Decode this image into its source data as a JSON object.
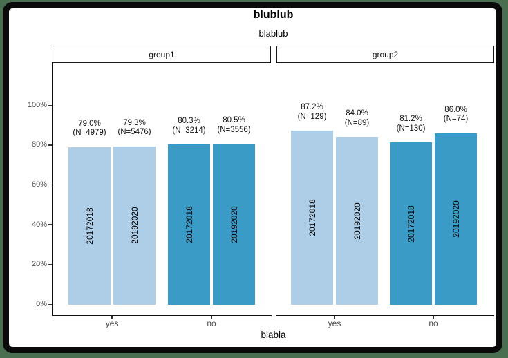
{
  "window": {
    "page_background": "#4a6e50",
    "frame_color": "#0a0a0a",
    "canvas_background": "#ffffff"
  },
  "chart_data": {
    "type": "bar",
    "title": "blublub",
    "subtitle": "blablub",
    "xlabel": "blabla",
    "ylabel": "",
    "legend_position": "none",
    "grid": "off",
    "ylim": [
      0,
      100
    ],
    "y_axis": {
      "ticks": [
        {
          "label": "0%",
          "value": 0
        },
        {
          "label": "20%",
          "value": 20
        },
        {
          "label": "40%",
          "value": 40
        },
        {
          "label": "60%",
          "value": 60
        },
        {
          "label": "80%",
          "value": 80
        },
        {
          "label": "100%",
          "value": 100
        }
      ]
    },
    "series_colors": {
      "light_blue": "#aecde6",
      "dark_blue": "#3a9cc6"
    },
    "facets": [
      {
        "label": "group1",
        "groups": [
          {
            "category": "yes",
            "color_key": "light_blue",
            "bars": [
              {
                "period": "20172018",
                "value_pct": 79.0,
                "label_pct": "79.0%",
                "label_n": "(N=4979)"
              },
              {
                "period": "20192020",
                "value_pct": 79.3,
                "label_pct": "79.3%",
                "label_n": "(N=5476)"
              }
            ]
          },
          {
            "category": "no",
            "color_key": "dark_blue",
            "bars": [
              {
                "period": "20172018",
                "value_pct": 80.3,
                "label_pct": "80.3%",
                "label_n": "(N=3214)"
              },
              {
                "period": "20192020",
                "value_pct": 80.5,
                "label_pct": "80.5%",
                "label_n": "(N=3556)"
              }
            ]
          }
        ]
      },
      {
        "label": "group2",
        "groups": [
          {
            "category": "yes",
            "color_key": "light_blue",
            "bars": [
              {
                "period": "20172018",
                "value_pct": 87.2,
                "label_pct": "87.2%",
                "label_n": "(N=129)"
              },
              {
                "period": "20192020",
                "value_pct": 84.0,
                "label_pct": "84.0%",
                "label_n": "(N=89)"
              }
            ]
          },
          {
            "category": "no",
            "color_key": "dark_blue",
            "bars": [
              {
                "period": "20172018",
                "value_pct": 81.2,
                "label_pct": "81.2%",
                "label_n": "(N=130)"
              },
              {
                "period": "20192020",
                "value_pct": 86.0,
                "label_pct": "86.0%",
                "label_n": "(N=74)"
              }
            ]
          }
        ]
      }
    ]
  }
}
